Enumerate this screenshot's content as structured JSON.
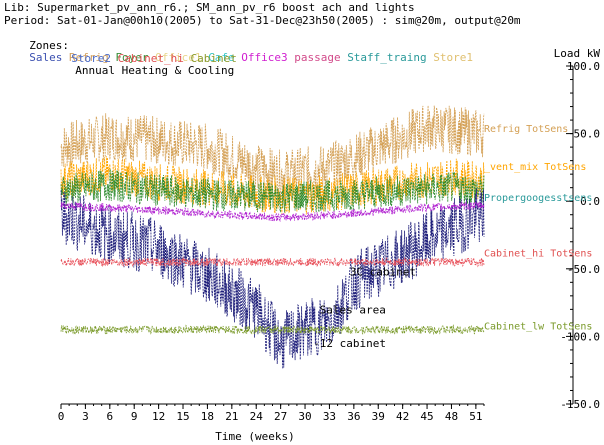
{
  "header": {
    "lib_line": "Lib: Supermarket_pv_ann_r6.; SM_ann_pv_r6 boost ach and lights",
    "period_line": "Period: Sat-01-Jan@00h10(2005) to Sat-31-Dec@23h50(2005) : sim@20m, output@20m",
    "zones_label": "Zones:",
    "zones_row1": [
      {
        "name": "Sales",
        "color": "#3a4fb0"
      },
      {
        "name": "Refrig",
        "color": "#d2a060"
      },
      {
        "name": "Foyer",
        "color": "#3a8f3a"
      },
      {
        "name": "Office1",
        "color": "#e8d58a"
      },
      {
        "name": "Cafe",
        "color": "#37c6c6"
      },
      {
        "name": "Office3",
        "color": "#d020d0"
      },
      {
        "name": "passage",
        "color": "#d24a8a"
      },
      {
        "name": "Staff_traing",
        "color": "#2a9a9a"
      },
      {
        "name": "Store1",
        "color": "#e0c070"
      }
    ],
    "zones_row2": [
      {
        "name": "Store2",
        "color": "#4a6ac8"
      },
      {
        "name": "Cabinet_hi",
        "color": "#e05050"
      },
      {
        "name": "Cabinet",
        "color": "#8a9a2a"
      }
    ],
    "title": "Annual Heating & Cooling"
  },
  "chart_data": {
    "type": "line",
    "title": "Annual Heating & Cooling",
    "xlabel": "Time (weeks)",
    "ylabel": "Load kW",
    "xlim": [
      0,
      52
    ],
    "ylim": [
      -150,
      100
    ],
    "xticks": [
      0,
      3,
      6,
      9,
      12,
      15,
      18,
      21,
      24,
      27,
      30,
      33,
      36,
      39,
      42,
      45,
      48,
      51
    ],
    "yticks": [
      {
        "value": 100,
        "label": "100.0"
      },
      {
        "value": 50,
        "label": "50.0"
      },
      {
        "value": 0,
        "label": "0.0"
      },
      {
        "value": -50,
        "label": "-50.0"
      },
      {
        "value": -100,
        "label": "-100.0"
      },
      {
        "value": -150,
        "label": "-150.0"
      }
    ],
    "series": [
      {
        "name": "Refrig TotSens",
        "color": "#d4a055",
        "points": [
          [
            0,
            40
          ],
          [
            6,
            48
          ],
          [
            12,
            45
          ],
          [
            18,
            40
          ],
          [
            24,
            25
          ],
          [
            27,
            20
          ],
          [
            33,
            25
          ],
          [
            39,
            40
          ],
          [
            45,
            55
          ],
          [
            52,
            50
          ]
        ],
        "spread": 18
      },
      {
        "name": "_vent_mix TotSens",
        "color": "#ffa500",
        "points": [
          [
            0,
            15
          ],
          [
            6,
            20
          ],
          [
            12,
            14
          ],
          [
            18,
            10
          ],
          [
            24,
            5
          ],
          [
            30,
            4
          ],
          [
            36,
            8
          ],
          [
            42,
            14
          ],
          [
            48,
            18
          ],
          [
            52,
            15
          ]
        ],
        "spread": 14
      },
      {
        "name": "Foyer",
        "color": "#2e8b2e",
        "points": [
          [
            0,
            8
          ],
          [
            6,
            12
          ],
          [
            12,
            8
          ],
          [
            18,
            5
          ],
          [
            26,
            3
          ],
          [
            34,
            4
          ],
          [
            42,
            8
          ],
          [
            48,
            10
          ],
          [
            52,
            8
          ]
        ],
        "spread": 12
      },
      {
        "name": "Sales",
        "color": "#1e1e7a",
        "points": [
          [
            0,
            -10
          ],
          [
            6,
            -25
          ],
          [
            12,
            -35
          ],
          [
            18,
            -55
          ],
          [
            24,
            -80
          ],
          [
            27,
            -105
          ],
          [
            30,
            -95
          ],
          [
            33,
            -90
          ],
          [
            36,
            -60
          ],
          [
            42,
            -40
          ],
          [
            48,
            -20
          ],
          [
            52,
            -10
          ]
        ],
        "spread": 22
      },
      {
        "name": "Office3",
        "color": "#b020d0",
        "points": [
          [
            0,
            -3
          ],
          [
            10,
            -6
          ],
          [
            20,
            -10
          ],
          [
            27,
            -12
          ],
          [
            34,
            -10
          ],
          [
            44,
            -5
          ],
          [
            52,
            -3
          ]
        ],
        "spread": 3
      },
      {
        "name": "Cabinet_hi TotSens",
        "color": "#e8505a",
        "points": [
          [
            0,
            -45
          ],
          [
            52,
            -45
          ]
        ],
        "spread": 3
      },
      {
        "name": "Cabinet_lw TotSens",
        "color": "#7a9a2a",
        "points": [
          [
            0,
            -95
          ],
          [
            52,
            -95
          ]
        ],
        "spread": 3
      }
    ],
    "right_labels": [
      {
        "text": "Refrig TotSens",
        "value": 54,
        "color": "#d4a055"
      },
      {
        "text": "_vent_mix TotSens",
        "value": 26,
        "color": "#ffa500"
      },
      {
        "text": "Propergoogesstsens",
        "value": 3,
        "color": "#2a9a9a"
      },
      {
        "text": "Cabinet_hi TotSens",
        "value": -38,
        "color": "#e05050"
      },
      {
        "text": "Cabinet_lw TotSens",
        "value": -92,
        "color": "#7a9a2a"
      }
    ],
    "annotations": [
      {
        "text": "3C cabinet",
        "x": 35.5,
        "y": -52
      },
      {
        "text": "Sales area",
        "x": 31.8,
        "y": -80
      },
      {
        "text": "-12 cabinet",
        "x": 31,
        "y": -105
      }
    ]
  }
}
